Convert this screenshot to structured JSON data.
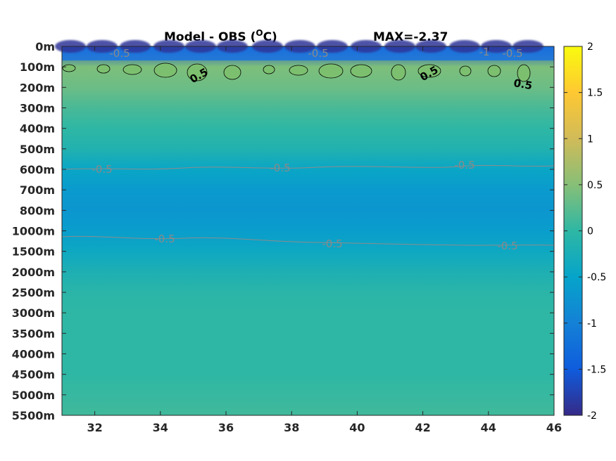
{
  "chart_data": {
    "type": "heatmap",
    "title_left": "Model - OBS (",
    "title_unit_sup": "O",
    "title_unit_end": "C)",
    "title_right": "MAX=-2.37",
    "xlabel": "",
    "ylabel": "",
    "xlim": [
      31,
      46
    ],
    "x_ticks": [
      32,
      34,
      36,
      38,
      40,
      42,
      44,
      46
    ],
    "y_tick_labels": [
      "0m",
      "100m",
      "200m",
      "300m",
      "400m",
      "500m",
      "600m",
      "700m",
      "800m",
      "1000m",
      "1500m",
      "2000m",
      "2500m",
      "3000m",
      "3500m",
      "4000m",
      "4500m",
      "5000m",
      "5500m"
    ],
    "colorbar": {
      "min": -2,
      "max": 2,
      "ticks": [
        2,
        1.5,
        1,
        0.5,
        0,
        -0.5,
        -1,
        -1.5,
        -2
      ],
      "colormap": "parula",
      "stops": [
        "#352a87",
        "#0f5cdd",
        "#1481d6",
        "#06a4ca",
        "#2eb7a4",
        "#87bf77",
        "#d1bb59",
        "#fec832",
        "#f9fb0e"
      ]
    },
    "depth_profile": {
      "description_levels": [
        0,
        1,
        2,
        3,
        4,
        5,
        6,
        7,
        8,
        9,
        10,
        11,
        12,
        13,
        14,
        15,
        16,
        17,
        18
      ],
      "values": [
        -1.6,
        0.45,
        0.35,
        0.15,
        0.0,
        -0.15,
        -0.45,
        -0.65,
        -0.7,
        -0.6,
        -0.4,
        -0.2,
        -0.05,
        0.0,
        0.0,
        0.0,
        0.0,
        0.05,
        0.1
      ]
    },
    "contour_labels": [
      {
        "text": "-0.5",
        "kind": "neg"
      },
      {
        "text": "-0.5",
        "kind": "neg"
      },
      {
        "text": "-1",
        "kind": "neg"
      },
      {
        "text": "-0.5",
        "kind": "neg"
      },
      {
        "text": "0.5",
        "kind": "pos"
      },
      {
        "text": "0.5",
        "kind": "pos"
      },
      {
        "text": "0.5",
        "kind": "pos"
      },
      {
        "text": "-0.5",
        "kind": "neg"
      },
      {
        "text": "-0.5",
        "kind": "neg"
      },
      {
        "text": "-0.5",
        "kind": "neg"
      },
      {
        "text": "-0.5",
        "kind": "neg"
      },
      {
        "text": "-0.5",
        "kind": "neg"
      },
      {
        "text": "-0.5",
        "kind": "neg"
      }
    ]
  }
}
